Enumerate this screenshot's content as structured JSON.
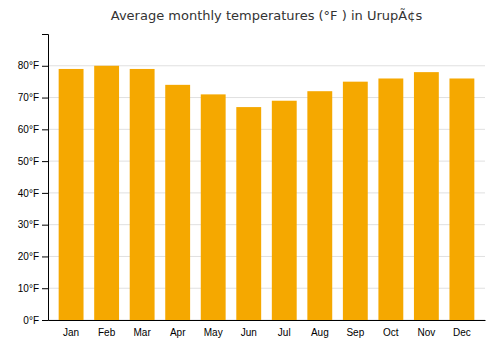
{
  "chart_data": {
    "type": "bar",
    "title": "Average monthly temperatures (°F ) in UrupÃ¢s",
    "categories": [
      "Jan",
      "Feb",
      "Mar",
      "Apr",
      "May",
      "Jun",
      "Jul",
      "Aug",
      "Sep",
      "Oct",
      "Nov",
      "Dec"
    ],
    "values": [
      79,
      80,
      79,
      74,
      71,
      67,
      69,
      72,
      75,
      76,
      78,
      76
    ],
    "color": "#F5A800",
    "ylim": [
      0,
      90
    ],
    "yticks": [
      {
        "value": 0,
        "label": "0°F"
      },
      {
        "value": 10,
        "label": "10°F"
      },
      {
        "value": 20,
        "label": "20°F"
      },
      {
        "value": 30,
        "label": "30°F"
      },
      {
        "value": 40,
        "label": "40°F"
      },
      {
        "value": 50,
        "label": "50°F"
      },
      {
        "value": 60,
        "label": "60°F"
      },
      {
        "value": 70,
        "label": "70°F"
      },
      {
        "value": 80,
        "label": "80°F"
      }
    ],
    "grid": true
  }
}
